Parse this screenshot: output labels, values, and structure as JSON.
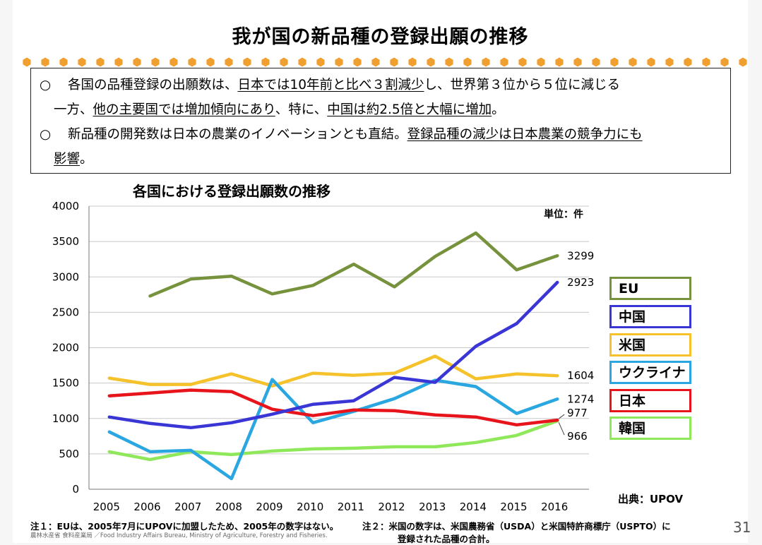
{
  "slide": {
    "title": "我が国の新品種の登録出願の推移",
    "page_number": "31",
    "accent_color": "#f0a030"
  },
  "summary": {
    "bullet_symbol": "○",
    "b1_line1_a": "各国の品種登録の出願数は、",
    "b1_line1_u": "日本では10年前と比べ３割減少",
    "b1_line1_b": "し、世界第３位から５位に減じる",
    "b1_line2_a": "一方、",
    "b1_line2_u1": "他の主要国では増加傾向にあり",
    "b1_line2_b": "、特に、",
    "b1_line2_u2": "中国は約2.5倍と大幅に増加",
    "b1_line2_c": "。",
    "b2_line1_a": "新品種の開発数は日本の農業のイノベーションとも直結。",
    "b2_line1_u": "登録品種の減少は日本農業の競争力にも",
    "b2_line2_u": "影響",
    "b2_line2_b": "。"
  },
  "chart_data": {
    "type": "line",
    "title": "各国における登録出願数の推移",
    "unit_label": "単位：件",
    "source_label": "出典：UPOV",
    "xlabel": "",
    "ylabel": "",
    "ylim": [
      0,
      4000
    ],
    "yticks": [
      0,
      500,
      1000,
      1500,
      2000,
      2500,
      3000,
      3500,
      4000
    ],
    "categories": [
      "2005",
      "2006",
      "2007",
      "2008",
      "2009",
      "2010",
      "2011",
      "2012",
      "2013",
      "2014",
      "2015",
      "2016"
    ],
    "grid": true,
    "series": [
      {
        "name": "EU",
        "color": "#76923c",
        "values": [
          null,
          2730,
          2970,
          3010,
          2760,
          2880,
          3180,
          2860,
          3290,
          3620,
          3100,
          3299
        ],
        "end_label": "3299"
      },
      {
        "name": "中国",
        "color": "#3a36d6",
        "values": [
          1020,
          930,
          870,
          940,
          1060,
          1200,
          1250,
          1580,
          1510,
          2020,
          2340,
          2923
        ],
        "end_label": "2923"
      },
      {
        "name": "米国",
        "color": "#f5c22b",
        "values": [
          1570,
          1480,
          1480,
          1630,
          1460,
          1640,
          1610,
          1640,
          1880,
          1560,
          1630,
          1604
        ],
        "end_label": "1604"
      },
      {
        "name": "ウクライナ",
        "color": "#2aa7e0",
        "values": [
          810,
          530,
          550,
          150,
          1550,
          940,
          1100,
          1280,
          1540,
          1450,
          1070,
          1274
        ],
        "end_label": "1274"
      },
      {
        "name": "日本",
        "color": "#e8141c",
        "values": [
          1320,
          1360,
          1400,
          1380,
          1130,
          1040,
          1120,
          1110,
          1050,
          1020,
          910,
          977
        ],
        "end_label": "977"
      },
      {
        "name": "韓国",
        "color": "#8fe85a",
        "values": [
          530,
          420,
          530,
          490,
          540,
          570,
          580,
          600,
          600,
          660,
          760,
          966
        ],
        "end_label": "966"
      }
    ]
  },
  "notes": {
    "note1": "注１：EUは、2005年7月にUPOVに加盟したため、2005年の数字はない。",
    "note2_line1": "注２：米国の数字は、米国農務省（USDA）と米国特許商標庁（USPTO）に",
    "note2_line2": "登録された品種の合計。",
    "credit": "農林水産省 食料産業局 ／Food Industry Affairs Bureau,   Ministry of Agriculture, Forestry and Fisheries."
  }
}
